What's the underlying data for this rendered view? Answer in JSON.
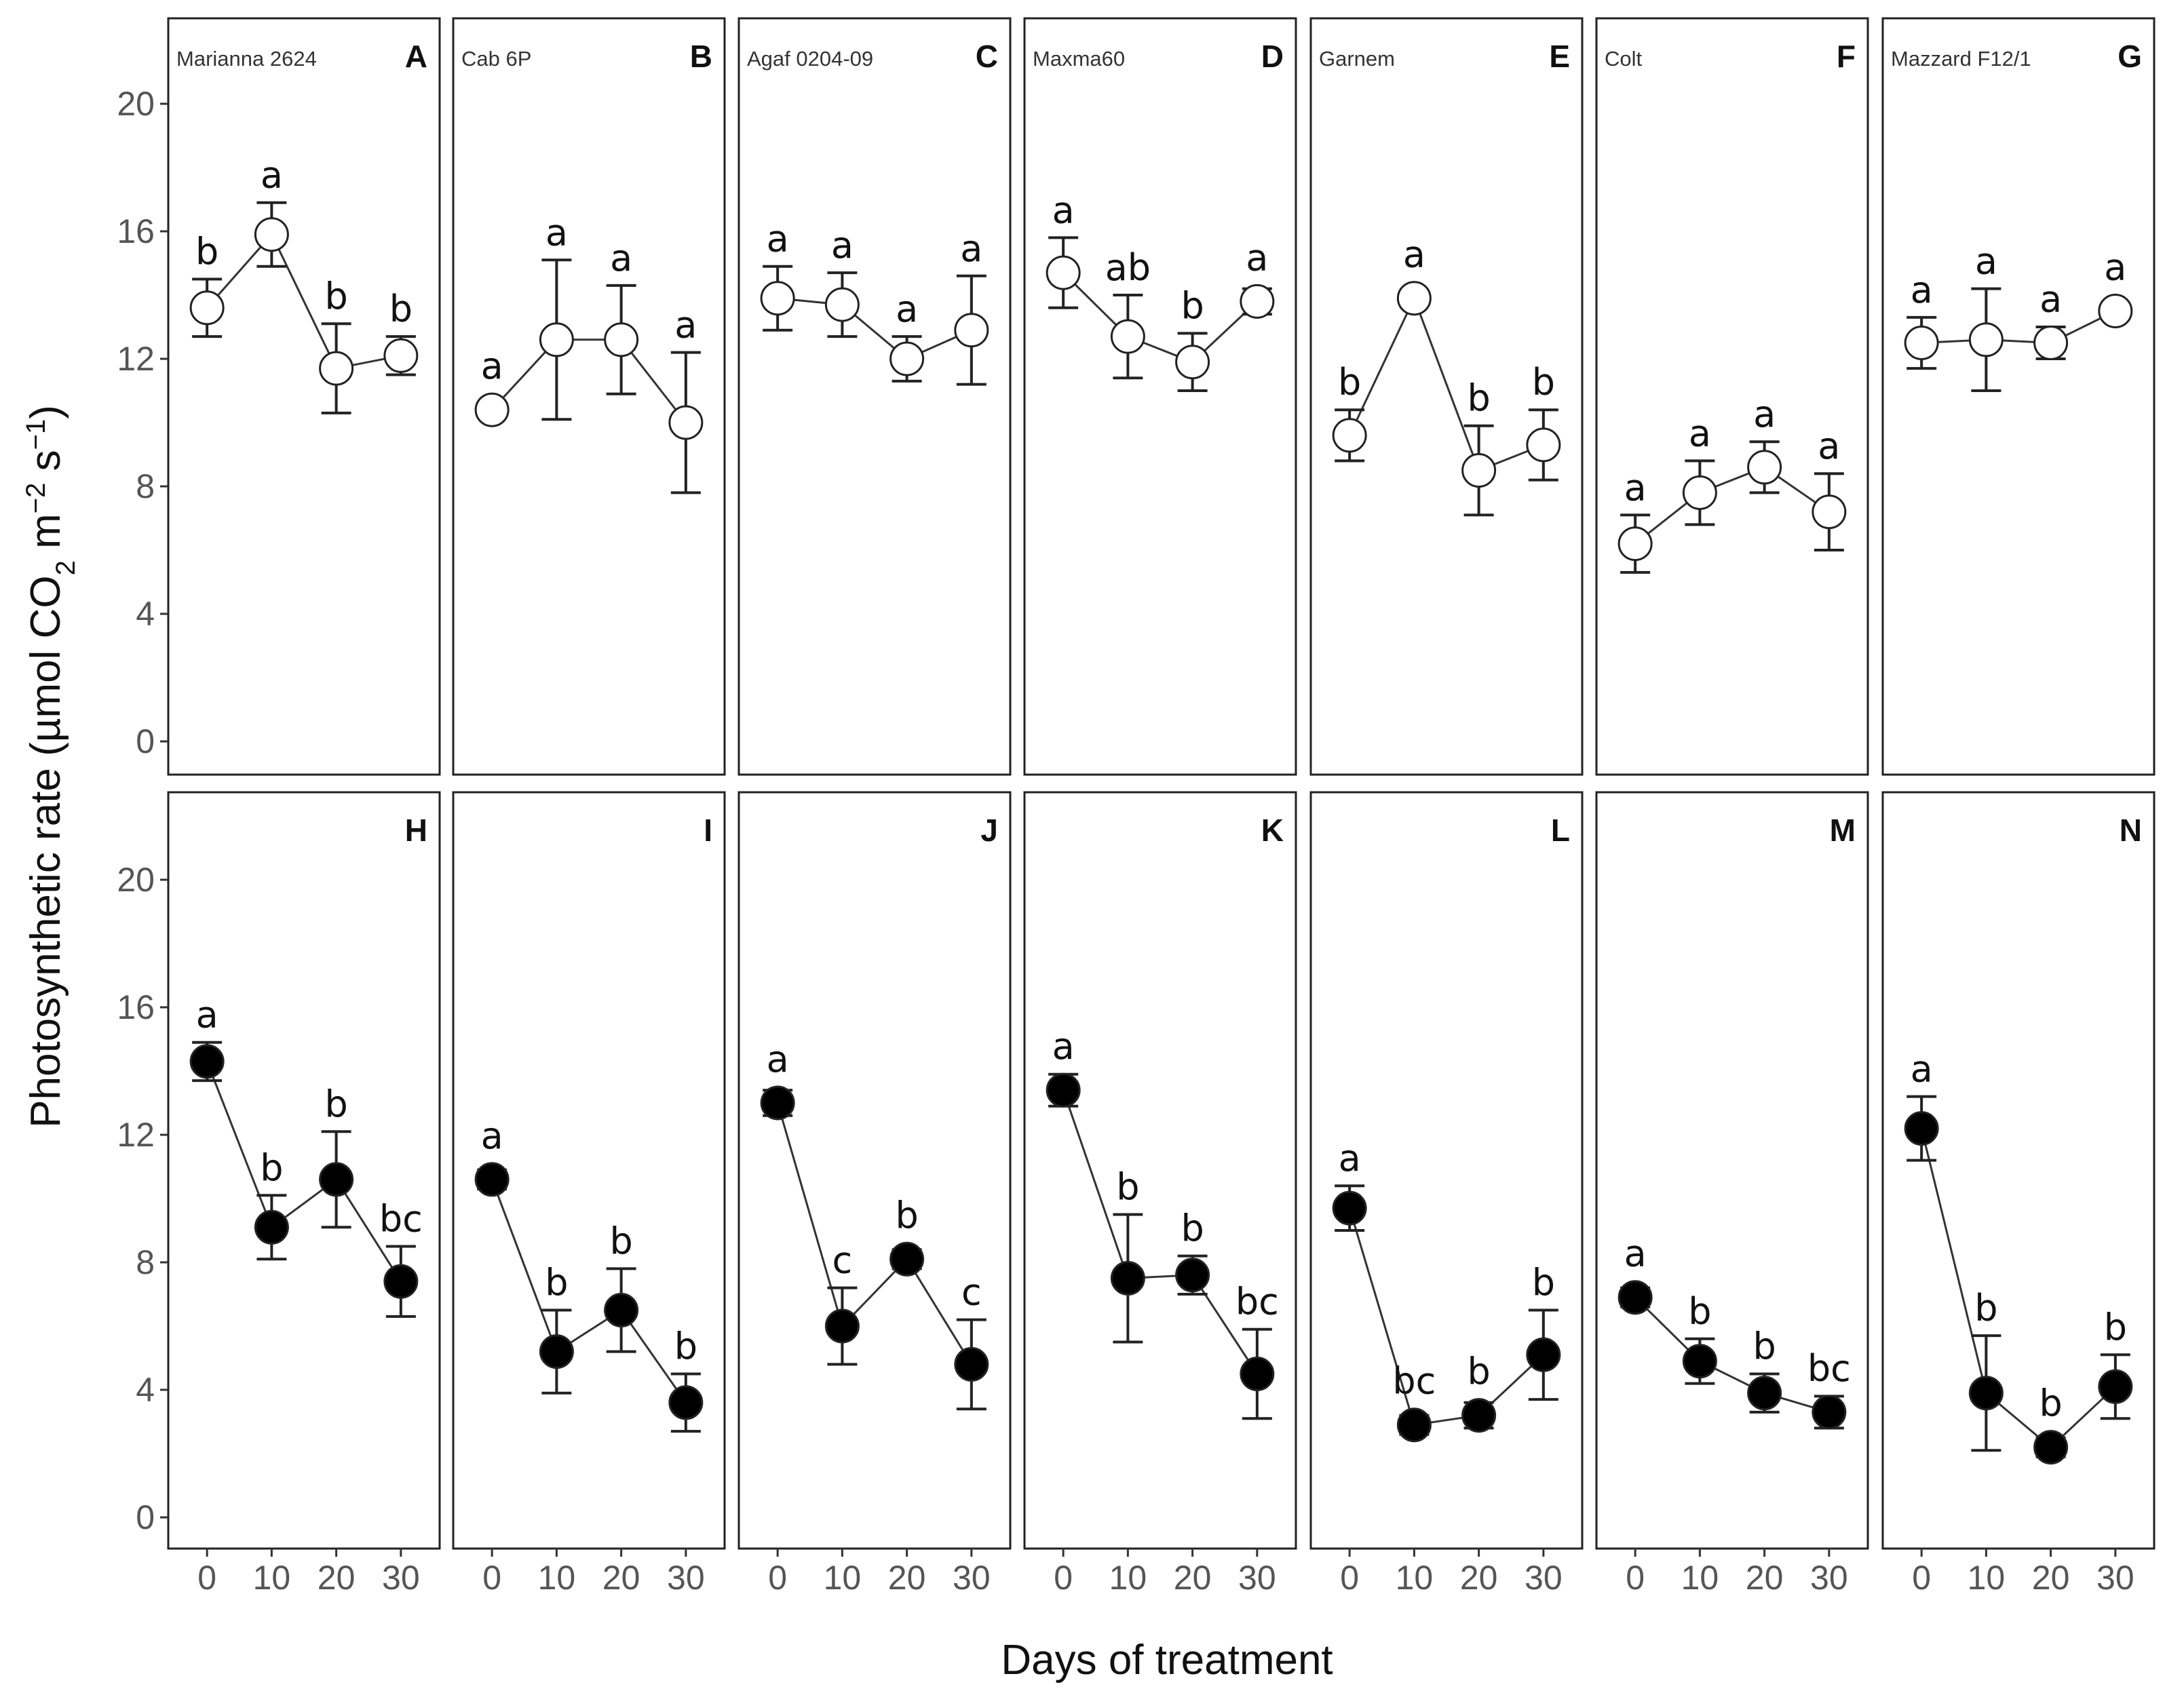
{
  "chart_data": {
    "type": "scatter",
    "ylabel": "Photosynthetic rate (µmol CO2 m−2 s−1)",
    "ylabel_parts": [
      "Photosynthetic rate (",
      "µmol CO",
      "2",
      " m",
      "−2",
      " s",
      "−1",
      ")"
    ],
    "xlabel": "Days of treatment",
    "x": [
      0,
      10,
      20,
      30
    ],
    "x_ticks": [
      "0",
      "10",
      "20",
      "30"
    ],
    "y_ticks": [
      0,
      4,
      8,
      12,
      16,
      20
    ],
    "ylim": [
      -2,
      22
    ],
    "xlim": [
      -6,
      36
    ],
    "rows": [
      {
        "marker": "open-circle",
        "marker_fill": "#ffffff",
        "panels": [
          {
            "letter": "A",
            "cultivar": "Marianna 2624",
            "values": [
              13.6,
              15.9,
              11.7,
              12.1
            ],
            "errors": [
              0.9,
              1.0,
              1.4,
              0.6
            ],
            "labels": [
              "b",
              "a",
              "b",
              "b"
            ]
          },
          {
            "letter": "B",
            "cultivar": "Cab 6P",
            "values": [
              10.4,
              12.6,
              12.6,
              10.0
            ],
            "errors": [
              0,
              2.5,
              1.7,
              2.2
            ],
            "labels": [
              "a",
              "a",
              "a",
              "a"
            ]
          },
          {
            "letter": "C",
            "cultivar": "Agaf 0204-09",
            "values": [
              13.9,
              13.7,
              12.0,
              12.9
            ],
            "errors": [
              1.0,
              1.0,
              0.7,
              1.7
            ],
            "labels": [
              "a",
              "a",
              "a",
              "a"
            ]
          },
          {
            "letter": "D",
            "cultivar": "Maxma60",
            "values": [
              14.7,
              12.7,
              11.9,
              13.8
            ],
            "errors": [
              1.1,
              1.3,
              0.9,
              0.4
            ],
            "labels": [
              "a",
              "ab",
              "b",
              "a"
            ]
          },
          {
            "letter": "E",
            "cultivar": "Garnem",
            "values": [
              9.6,
              13.9,
              8.5,
              9.3
            ],
            "errors": [
              0.8,
              0,
              1.4,
              1.1
            ],
            "labels": [
              "b",
              "a",
              "b",
              "b"
            ]
          },
          {
            "letter": "F",
            "cultivar": "Colt",
            "values": [
              6.2,
              7.8,
              8.6,
              7.2
            ],
            "errors": [
              0.9,
              1.0,
              0.8,
              1.2
            ],
            "labels": [
              "a",
              "a",
              "a",
              "a"
            ]
          },
          {
            "letter": "G",
            "cultivar": "Mazzard F12/1",
            "values": [
              12.5,
              12.6,
              12.5,
              13.5
            ],
            "errors": [
              0.8,
              1.6,
              0.5,
              0
            ],
            "labels": [
              "a",
              "a",
              "a",
              "a"
            ]
          }
        ]
      },
      {
        "marker": "filled-circle",
        "marker_fill": "#000000",
        "panels": [
          {
            "letter": "H",
            "values": [
              14.3,
              9.1,
              10.6,
              7.4
            ],
            "errors": [
              0.6,
              1.0,
              1.5,
              1.1
            ],
            "labels": [
              "a",
              "b",
              "b",
              "bc"
            ]
          },
          {
            "letter": "I",
            "values": [
              10.6,
              5.2,
              6.5,
              3.6
            ],
            "errors": [
              0.3,
              1.3,
              1.3,
              0.9
            ],
            "labels": [
              "a",
              "b",
              "b",
              "b"
            ]
          },
          {
            "letter": "J",
            "values": [
              13.0,
              6.0,
              8.1,
              4.8
            ],
            "errors": [
              0.4,
              1.2,
              0.3,
              1.4
            ],
            "labels": [
              "a",
              "c",
              "b",
              "c"
            ]
          },
          {
            "letter": "K",
            "values": [
              13.4,
              7.5,
              7.6,
              4.5
            ],
            "errors": [
              0.5,
              2.0,
              0.6,
              1.4
            ],
            "labels": [
              "a",
              "b",
              "b",
              "bc"
            ]
          },
          {
            "letter": "L",
            "values": [
              9.7,
              2.9,
              3.2,
              5.1
            ],
            "errors": [
              0.7,
              0.3,
              0.4,
              1.4
            ],
            "labels": [
              "a",
              "bc",
              "b",
              "b"
            ]
          },
          {
            "letter": "M",
            "values": [
              6.9,
              4.9,
              3.9,
              3.3
            ],
            "errors": [
              0.3,
              0.7,
              0.6,
              0.5
            ],
            "labels": [
              "a",
              "b",
              "b",
              "bc"
            ]
          },
          {
            "letter": "N",
            "values": [
              12.2,
              3.9,
              2.2,
              4.1
            ],
            "errors": [
              1.0,
              1.8,
              0.3,
              1.0
            ],
            "labels": [
              "a",
              "b",
              "b",
              "b"
            ]
          }
        ]
      }
    ]
  }
}
